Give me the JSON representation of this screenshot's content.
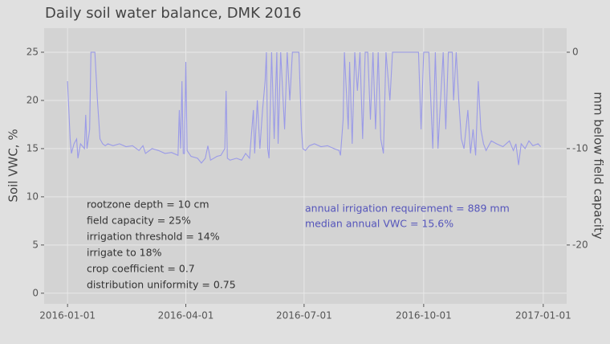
{
  "chart_data": {
    "type": "line",
    "title": "Daily soil water balance,  DMK 2016",
    "ylabel": "Soil VWC, %",
    "y2label": "mm below field capacity",
    "annotations_left": [
      "rootzone depth = 10 cm",
      "field capacity = 25%",
      "irrigation threshold = 14%",
      "irrigate to 18%",
      "crop coefficient = 0.7",
      "distribution uniformity = 0.75"
    ],
    "annotations_right": [
      "annual irrigation requirement = 889 mm",
      "median annual VWC = 15.6%"
    ],
    "xlim": [
      "2015-12-14",
      "2017-01-19"
    ],
    "xticks": [
      "2016-01-01",
      "2016-04-01",
      "2016-07-01",
      "2016-10-01",
      "2017-01-01"
    ],
    "ylim": [
      -1.1,
      27.5
    ],
    "yticks": [
      0,
      5,
      10,
      15,
      20,
      25
    ],
    "y2lim": [
      -26.1,
      2.5
    ],
    "y2ticks": [
      -20,
      -10,
      0
    ],
    "grid": true,
    "x": [
      "2016-01-01",
      "2016-01-03",
      "2016-01-04",
      "2016-01-06",
      "2016-01-08",
      "2016-01-09",
      "2016-01-11",
      "2016-01-14",
      "2016-01-15",
      "2016-01-16",
      "2016-01-18",
      "2016-01-19",
      "2016-01-22",
      "2016-01-24",
      "2016-01-26",
      "2016-01-28",
      "2016-01-30",
      "2016-02-01",
      "2016-02-05",
      "2016-02-10",
      "2016-02-15",
      "2016-02-20",
      "2016-02-25",
      "2016-02-28",
      "2016-03-01",
      "2016-03-06",
      "2016-03-11",
      "2016-03-16",
      "2016-03-21",
      "2016-03-26",
      "2016-03-27",
      "2016-03-28",
      "2016-03-29",
      "2016-03-30",
      "2016-03-31",
      "2016-04-01",
      "2016-04-02",
      "2016-04-05",
      "2016-04-10",
      "2016-04-13",
      "2016-04-16",
      "2016-04-18",
      "2016-04-20",
      "2016-04-25",
      "2016-04-28",
      "2016-05-01",
      "2016-05-02",
      "2016-05-03",
      "2016-05-05",
      "2016-05-10",
      "2016-05-14",
      "2016-05-17",
      "2016-05-20",
      "2016-05-23",
      "2016-05-24",
      "2016-05-26",
      "2016-05-28",
      "2016-05-30",
      "2016-06-01",
      "2016-06-02",
      "2016-06-03",
      "2016-06-04",
      "2016-06-06",
      "2016-06-08",
      "2016-06-10",
      "2016-06-11",
      "2016-06-13",
      "2016-06-16",
      "2016-06-18",
      "2016-06-20",
      "2016-06-22",
      "2016-06-25",
      "2016-06-27",
      "2016-06-29",
      "2016-06-30",
      "2016-07-02",
      "2016-07-05",
      "2016-07-09",
      "2016-07-14",
      "2016-07-19",
      "2016-07-24",
      "2016-07-28",
      "2016-07-29",
      "2016-07-31",
      "2016-08-01",
      "2016-08-04",
      "2016-08-05",
      "2016-08-07",
      "2016-08-09",
      "2016-08-11",
      "2016-08-13",
      "2016-08-15",
      "2016-08-17",
      "2016-08-19",
      "2016-08-21",
      "2016-08-23",
      "2016-08-25",
      "2016-08-27",
      "2016-08-29",
      "2016-08-31",
      "2016-09-02",
      "2016-09-05",
      "2016-09-07",
      "2016-09-27",
      "2016-09-29",
      "2016-10-01",
      "2016-10-03",
      "2016-10-05",
      "2016-10-08",
      "2016-10-10",
      "2016-10-12",
      "2016-10-14",
      "2016-10-16",
      "2016-10-18",
      "2016-10-20",
      "2016-10-23",
      "2016-10-24",
      "2016-10-26",
      "2016-10-28",
      "2016-10-30",
      "2016-11-01",
      "2016-11-04",
      "2016-11-06",
      "2016-11-08",
      "2016-11-10",
      "2016-11-12",
      "2016-11-14",
      "2016-11-16",
      "2016-11-18",
      "2016-11-22",
      "2016-11-26",
      "2016-12-01",
      "2016-12-06",
      "2016-12-09",
      "2016-12-11",
      "2016-12-13",
      "2016-12-15",
      "2016-12-18",
      "2016-12-21",
      "2016-12-24",
      "2016-12-28",
      "2016-12-30"
    ],
    "series": [
      {
        "name": "Soil VWC",
        "color": "#9a9ae8",
        "values": [
          22,
          16,
          14.5,
          15.5,
          16,
          14,
          15.5,
          15,
          18.5,
          15,
          17,
          25,
          25,
          20,
          16,
          15.5,
          15.3,
          15.5,
          15.3,
          15.5,
          15.2,
          15.3,
          14.8,
          15.3,
          14.5,
          15,
          14.8,
          14.5,
          14.6,
          14.3,
          19,
          15,
          22,
          14.5,
          14.5,
          24,
          14.8,
          14.2,
          14,
          13.5,
          14,
          15.3,
          13.8,
          14.2,
          14.3,
          15,
          21,
          14,
          13.8,
          14,
          13.8,
          14.5,
          14,
          19,
          14.5,
          20,
          15,
          19,
          22,
          25,
          15,
          14,
          25,
          16,
          25,
          15.5,
          25,
          17,
          25,
          20,
          25,
          25,
          25,
          17,
          15,
          14.8,
          15.3,
          15.5,
          15.2,
          15.3,
          15,
          14.8,
          14.3,
          18,
          25,
          17,
          24,
          15.5,
          25,
          21,
          25,
          16,
          25,
          25,
          18,
          25,
          17,
          25,
          16,
          14.5,
          25,
          20,
          25,
          25,
          17,
          25,
          25,
          25,
          15,
          25,
          15,
          20,
          25,
          17,
          25,
          25,
          20,
          25,
          20,
          16,
          15,
          19,
          14.5,
          17,
          14.3,
          22,
          17,
          15.5,
          14.8,
          15.8,
          15.5,
          15.2,
          15.8,
          14.8,
          15.5,
          13.3,
          15.5,
          15,
          15.8,
          15.3,
          15.5,
          15.2
        ]
      }
    ]
  }
}
